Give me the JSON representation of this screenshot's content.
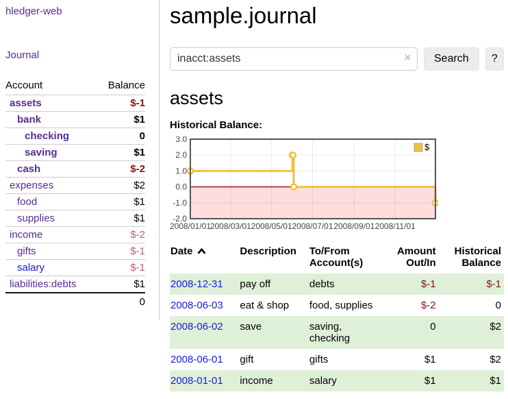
{
  "app_title": "hledger-web",
  "header": {
    "title": "sample.journal"
  },
  "search": {
    "value": "inacct:assets",
    "clear_icon": "×",
    "button_label": "Search",
    "help_label": "?"
  },
  "sidebar": {
    "journal_link": "Journal",
    "accounts_table": {
      "headers": {
        "account": "Account",
        "balance": "Balance"
      },
      "rows": [
        {
          "name": "assets",
          "indent": 0,
          "bold": true,
          "balance": "$-1",
          "negative": "strong"
        },
        {
          "name": "bank",
          "indent": 1,
          "bold": true,
          "balance": "$1"
        },
        {
          "name": "checking",
          "indent": 2,
          "bold": true,
          "balance": "0"
        },
        {
          "name": "saving",
          "indent": 2,
          "bold": true,
          "balance": "$1"
        },
        {
          "name": "cash",
          "indent": 1,
          "bold": true,
          "balance": "$-2",
          "negative": "strong"
        },
        {
          "name": "expenses",
          "indent": 0,
          "bold": false,
          "balance": "$2"
        },
        {
          "name": "food",
          "indent": 1,
          "bold": false,
          "balance": "$1"
        },
        {
          "name": "supplies",
          "indent": 1,
          "bold": false,
          "balance": "$1"
        },
        {
          "name": "income",
          "indent": 0,
          "bold": false,
          "balance": "$-2",
          "negative": "muted"
        },
        {
          "name": "gifts",
          "indent": 1,
          "bold": false,
          "balance": "$-1",
          "negative": "muted"
        },
        {
          "name": "salary",
          "indent": 1,
          "bold": false,
          "balance": "$-1",
          "negative": "muted",
          "blue": true
        },
        {
          "name": "liabilities:debts",
          "indent": 0,
          "bold": false,
          "balance": "$1"
        }
      ],
      "total": "0"
    }
  },
  "account_page": {
    "title": "assets"
  },
  "chart_data": {
    "type": "line",
    "title": "Historical Balance:",
    "series": [
      {
        "name": "$",
        "color": "#edc240",
        "steps": true,
        "points": [
          {
            "x": "2008-01-01",
            "y": 1
          },
          {
            "x": "2008-06-01",
            "y": 2
          },
          {
            "x": "2008-06-02",
            "y": 2
          },
          {
            "x": "2008-06-03",
            "y": 0
          },
          {
            "x": "2008-12-31",
            "y": -1
          }
        ]
      }
    ],
    "xlim": [
      "2008-01-01",
      "2008-12-31"
    ],
    "ylim": [
      -2,
      3
    ],
    "x_ticks": [
      {
        "date": "2008-01-01",
        "label": "2008/01/01"
      },
      {
        "date": "2008-03-01",
        "label": "2008/03/01"
      },
      {
        "date": "2008-05-01",
        "label": "2008/05/01"
      },
      {
        "date": "2008-07-01",
        "label": "2008/07/01"
      },
      {
        "date": "2008-09-01",
        "label": "2008/09/01"
      },
      {
        "date": "2008-11-01",
        "label": "2008/11/01"
      }
    ],
    "y_ticks": [
      {
        "v": 3,
        "label": "3.0"
      },
      {
        "v": 2,
        "label": "2.0"
      },
      {
        "v": 1,
        "label": "1.0"
      },
      {
        "v": 0,
        "label": "0.0"
      },
      {
        "v": -1,
        "label": "-1.0"
      },
      {
        "v": -2,
        "label": "-2.0"
      }
    ],
    "grid": true,
    "legend": [
      "$"
    ],
    "legend_position": "top-right",
    "negative_region_color": "#ffdddd",
    "zero_line_color": "#990000",
    "border_color": "#545454"
  },
  "register_table": {
    "headers": {
      "date": "Date",
      "description": "Description",
      "accounts": "To/From Account(s)",
      "amount": "Amount Out/In",
      "balance": "Historical Balance"
    },
    "sort": {
      "column": "date",
      "direction": "asc"
    },
    "rows": [
      {
        "date": "2008-12-31",
        "description": "pay off",
        "accounts": "debts",
        "amount": "$-1",
        "amount_negative": true,
        "balance": "$-1",
        "balance_negative": true
      },
      {
        "date": "2008-06-03",
        "description": "eat & shop",
        "accounts": "food, supplies",
        "amount": "$-2",
        "amount_negative": true,
        "balance": "0",
        "balance_negative": false
      },
      {
        "date": "2008-06-02",
        "description": "save",
        "accounts": "saving, checking",
        "amount": "0",
        "amount_negative": false,
        "balance": "$2",
        "balance_negative": false
      },
      {
        "date": "2008-06-01",
        "description": "gift",
        "accounts": "gifts",
        "amount": "$1",
        "amount_negative": false,
        "balance": "$2",
        "balance_negative": false
      },
      {
        "date": "2008-01-01",
        "description": "income",
        "accounts": "salary",
        "amount": "$1",
        "amount_negative": false,
        "balance": "$1",
        "balance_negative": false
      }
    ]
  },
  "colors": {
    "link_purple": "#552d91",
    "link_blue": "#1a1ae0",
    "negative_strong": "#801515",
    "negative_muted": "#c06070",
    "row_stripe_green": "#dff0d8",
    "chart_series_gold": "#edc240",
    "chart_negative_bg": "#ffdddd",
    "chart_zero_line": "#990000"
  }
}
